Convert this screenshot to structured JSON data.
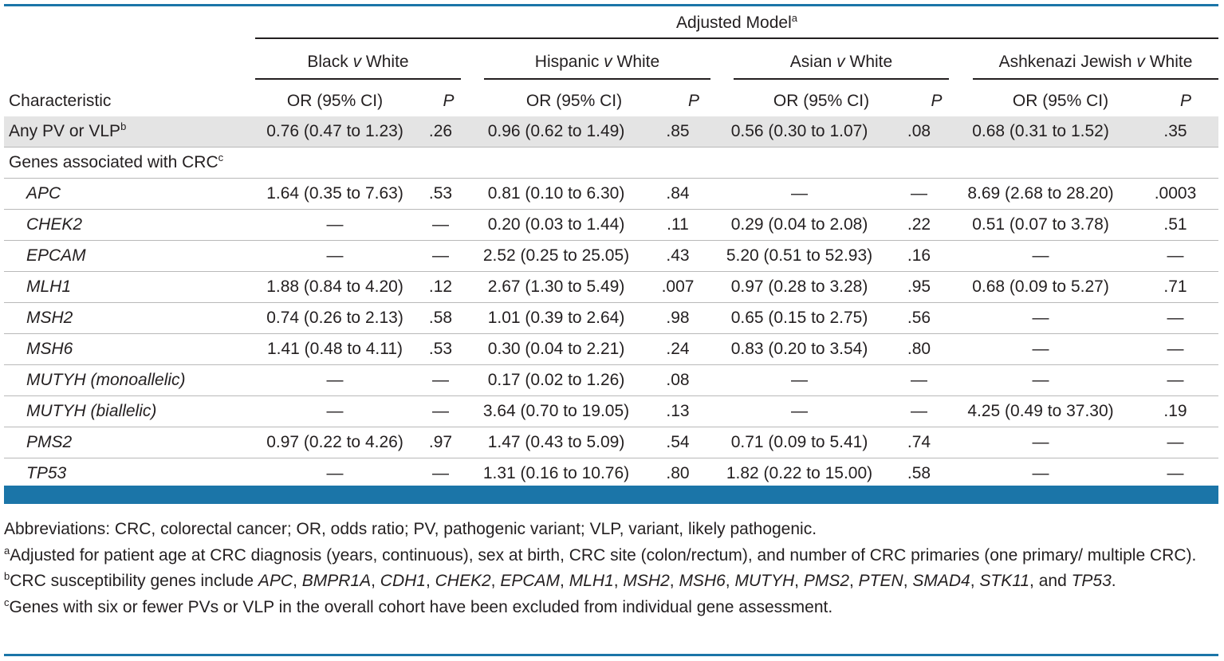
{
  "header": {
    "super_title": "Adjusted Model",
    "super_title_mark": "a",
    "groups": [
      {
        "left": "Black",
        "v": "v",
        "right": "White"
      },
      {
        "left": "Hispanic",
        "v": "v",
        "right": "White"
      },
      {
        "left": "Asian",
        "v": "v",
        "right": "White"
      },
      {
        "left": "Ashkenazi Jewish",
        "v": "v",
        "right": "White"
      }
    ],
    "characteristic": "Characteristic",
    "or_label": "OR (95% CI)",
    "p_label": "P"
  },
  "rows": [
    {
      "label": "Any PV or VLP",
      "mark": "b",
      "type": "summary",
      "cells": [
        "0.76 (0.47 to 1.23)",
        ".26",
        "0.96 (0.62 to 1.49)",
        ".85",
        "0.56 (0.30 to 1.07)",
        ".08",
        "0.68 (0.31 to 1.52)",
        ".35"
      ]
    },
    {
      "label": "Genes associated with CRC",
      "mark": "c",
      "type": "section",
      "cells": [
        "",
        "",
        "",
        "",
        "",
        "",
        "",
        ""
      ]
    },
    {
      "label": "APC",
      "suffix": "",
      "type": "gene",
      "cells": [
        "1.64 (0.35 to 7.63)",
        ".53",
        "0.81 (0.10 to 6.30)",
        ".84",
        "—",
        "—",
        "8.69 (2.68 to 28.20)",
        ".0003"
      ]
    },
    {
      "label": "CHEK2",
      "suffix": "",
      "type": "gene",
      "cells": [
        "—",
        "—",
        "0.20 (0.03 to 1.44)",
        ".11",
        "0.29 (0.04 to 2.08)",
        ".22",
        "0.51 (0.07 to 3.78)",
        ".51"
      ]
    },
    {
      "label": "EPCAM",
      "suffix": "",
      "type": "gene",
      "cells": [
        "—",
        "—",
        "2.52 (0.25 to 25.05)",
        ".43",
        "5.20 (0.51 to 52.93)",
        ".16",
        "—",
        "—"
      ]
    },
    {
      "label": "MLH1",
      "suffix": "",
      "type": "gene",
      "cells": [
        "1.88 (0.84 to 4.20)",
        ".12",
        "2.67 (1.30 to 5.49)",
        ".007",
        "0.97 (0.28 to 3.28)",
        ".95",
        "0.68 (0.09 to 5.27)",
        ".71"
      ]
    },
    {
      "label": "MSH2",
      "suffix": "",
      "type": "gene",
      "cells": [
        "0.74 (0.26 to 2.13)",
        ".58",
        "1.01 (0.39 to 2.64)",
        ".98",
        "0.65 (0.15 to 2.75)",
        ".56",
        "—",
        "—"
      ]
    },
    {
      "label": "MSH6",
      "suffix": "",
      "type": "gene",
      "cells": [
        "1.41 (0.48 to 4.11)",
        ".53",
        "0.30 (0.04 to 2.21)",
        ".24",
        "0.83 (0.20 to 3.54)",
        ".80",
        "—",
        "—"
      ]
    },
    {
      "label": "MUTYH",
      "suffix": " (monoallelic)",
      "type": "gene",
      "cells": [
        "—",
        "—",
        "0.17 (0.02 to 1.26)",
        ".08",
        "—",
        "—",
        "—",
        "—"
      ]
    },
    {
      "label": "MUTYH",
      "suffix": " (biallelic)",
      "type": "gene",
      "cells": [
        "—",
        "—",
        "3.64 (0.70 to 19.05)",
        ".13",
        "—",
        "—",
        "4.25 (0.49 to 37.30)",
        ".19"
      ]
    },
    {
      "label": "PMS2",
      "suffix": "",
      "type": "gene",
      "cells": [
        "0.97 (0.22 to 4.26)",
        ".97",
        "1.47 (0.43 to 5.09)",
        ".54",
        "0.71 (0.09 to 5.41)",
        ".74",
        "—",
        "—"
      ]
    },
    {
      "label": "TP53",
      "suffix": "",
      "type": "gene",
      "cells": [
        "—",
        "—",
        "1.31 (0.16 to 10.76)",
        ".80",
        "1.82 (0.22 to 15.00)",
        ".58",
        "—",
        "—"
      ]
    }
  ],
  "footnotes": {
    "abbrev": "Abbreviations: CRC, colorectal cancer; OR, odds ratio; PV, pathogenic variant; VLP, variant, likely pathogenic.",
    "a_mark": "a",
    "a_text": "Adjusted for patient age at CRC diagnosis (years, continuous), sex at birth, CRC site (colon/rectum), and number of CRC primaries (one primary/ multiple CRC).",
    "b_mark": "b",
    "b_prefix": "CRC susceptibility genes include ",
    "b_genes": [
      "APC",
      "BMPR1A",
      "CDH1",
      "CHEK2",
      "EPCAM",
      "MLH1",
      "MSH2",
      "MSH6",
      "MUTYH",
      "PMS2",
      "PTEN",
      "SMAD4",
      "STK11"
    ],
    "b_and": ", and ",
    "b_last": "TP53",
    "b_end": ".",
    "c_mark": "c",
    "c_text": "Genes with six or fewer PVs or VLP in the overall cohort have been excluded from individual gene assessment."
  },
  "colors": {
    "accent": "#1b75a8",
    "shade": "#e4e4e4"
  }
}
